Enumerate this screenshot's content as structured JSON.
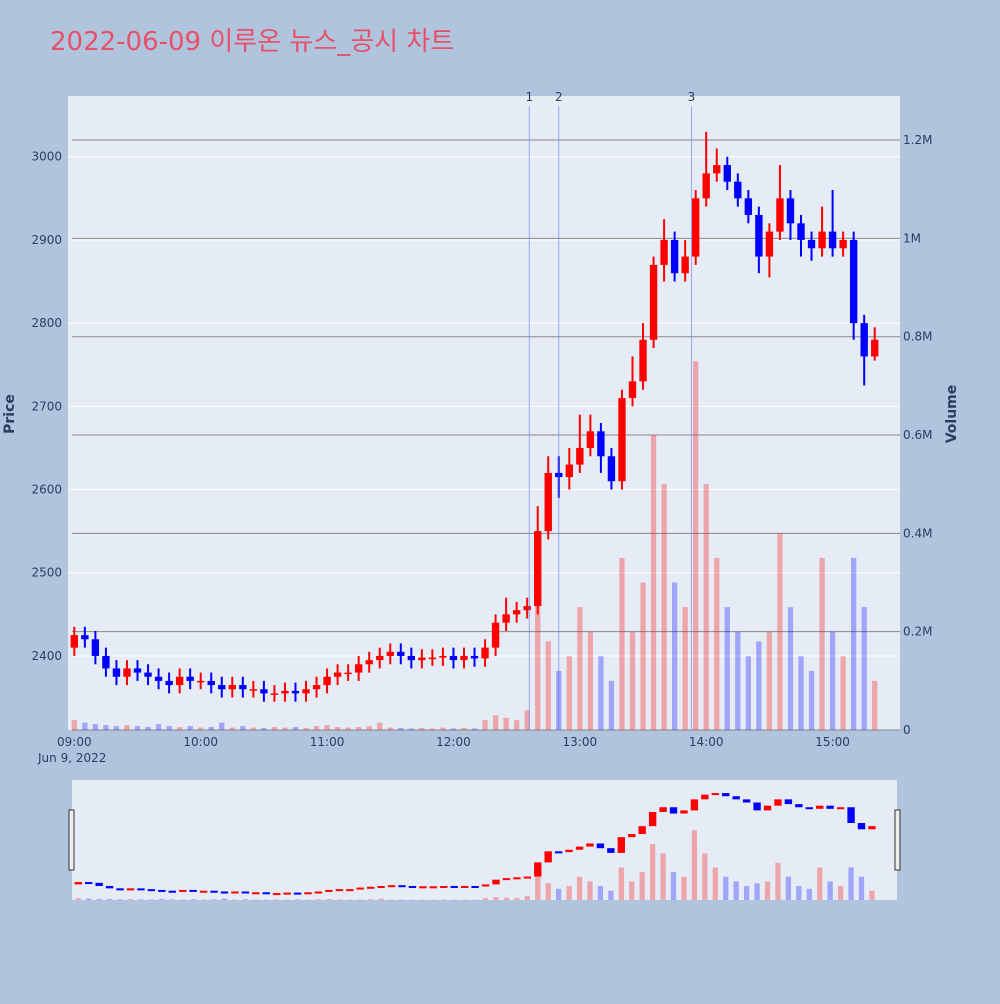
{
  "chart_data": {
    "type": "candlestick",
    "title": "2022-06-09 이루온 뉴스_공시 차트",
    "y_title": "Price",
    "y2_title": "Volume",
    "x_date_label": "Jun 9, 2022",
    "up_color": "#ff0000",
    "down_color": "#0000ff",
    "x": [
      "09:00",
      "09:05",
      "09:10",
      "09:15",
      "09:20",
      "09:25",
      "09:30",
      "09:35",
      "09:40",
      "09:45",
      "09:50",
      "09:55",
      "10:00",
      "10:05",
      "10:10",
      "10:15",
      "10:20",
      "10:25",
      "10:30",
      "10:35",
      "10:40",
      "10:45",
      "10:50",
      "10:55",
      "11:00",
      "11:05",
      "11:10",
      "11:15",
      "11:20",
      "11:25",
      "11:30",
      "11:35",
      "11:40",
      "11:45",
      "11:50",
      "11:55",
      "12:00",
      "12:05",
      "12:10",
      "12:15",
      "12:20",
      "12:25",
      "12:30",
      "12:35",
      "12:40",
      "12:45",
      "12:50",
      "12:55",
      "13:00",
      "13:05",
      "13:10",
      "13:15",
      "13:20",
      "13:25",
      "13:30",
      "13:35",
      "13:40",
      "13:45",
      "13:50",
      "13:55",
      "14:00",
      "14:05",
      "14:10",
      "14:15",
      "14:20",
      "14:25",
      "14:30",
      "14:35",
      "14:40",
      "14:45",
      "14:50",
      "14:55",
      "15:00",
      "15:05",
      "15:10",
      "15:15",
      "15:20"
    ],
    "open": [
      2410,
      2425,
      2420,
      2400,
      2385,
      2375,
      2385,
      2380,
      2375,
      2370,
      2365,
      2375,
      2370,
      2370,
      2365,
      2360,
      2365,
      2360,
      2360,
      2355,
      2355,
      2358,
      2355,
      2360,
      2365,
      2375,
      2380,
      2380,
      2390,
      2395,
      2400,
      2405,
      2400,
      2395,
      2398,
      2398,
      2400,
      2395,
      2400,
      2397,
      2410,
      2440,
      2450,
      2455,
      2460,
      2550,
      2620,
      2615,
      2630,
      2650,
      2670,
      2640,
      2610,
      2710,
      2730,
      2780,
      2870,
      2900,
      2860,
      2880,
      2950,
      2980,
      2990,
      2970,
      2950,
      2930,
      2880,
      2910,
      2950,
      2920,
      2900,
      2890,
      2910,
      2890,
      2900,
      2800,
      2760
    ],
    "high": [
      2435,
      2435,
      2430,
      2410,
      2395,
      2395,
      2395,
      2390,
      2385,
      2380,
      2385,
      2385,
      2380,
      2380,
      2375,
      2375,
      2375,
      2370,
      2370,
      2365,
      2368,
      2368,
      2370,
      2375,
      2385,
      2390,
      2390,
      2400,
      2405,
      2410,
      2415,
      2415,
      2410,
      2408,
      2408,
      2410,
      2410,
      2410,
      2410,
      2420,
      2450,
      2470,
      2465,
      2470,
      2580,
      2640,
      2640,
      2650,
      2690,
      2690,
      2680,
      2650,
      2720,
      2760,
      2800,
      2880,
      2925,
      2910,
      2900,
      2960,
      3030,
      3010,
      3000,
      2980,
      2960,
      2940,
      2920,
      2990,
      2960,
      2930,
      2910,
      2940,
      2960,
      2910,
      2910,
      2810,
      2795
    ],
    "low": [
      2400,
      2410,
      2390,
      2375,
      2365,
      2365,
      2370,
      2365,
      2360,
      2355,
      2355,
      2360,
      2360,
      2355,
      2350,
      2350,
      2350,
      2350,
      2345,
      2345,
      2345,
      2345,
      2345,
      2350,
      2355,
      2365,
      2370,
      2370,
      2380,
      2385,
      2390,
      2390,
      2385,
      2385,
      2388,
      2388,
      2385,
      2385,
      2387,
      2387,
      2400,
      2430,
      2440,
      2445,
      2450,
      2540,
      2590,
      2600,
      2620,
      2640,
      2620,
      2600,
      2600,
      2700,
      2720,
      2770,
      2850,
      2850,
      2850,
      2870,
      2940,
      2970,
      2960,
      2940,
      2920,
      2860,
      2855,
      2900,
      2900,
      2880,
      2875,
      2880,
      2880,
      2880,
      2780,
      2725,
      2755
    ],
    "close": [
      2425,
      2420,
      2400,
      2385,
      2375,
      2385,
      2380,
      2375,
      2370,
      2365,
      2375,
      2370,
      2370,
      2365,
      2360,
      2365,
      2360,
      2360,
      2355,
      2355,
      2358,
      2355,
      2360,
      2365,
      2375,
      2380,
      2380,
      2390,
      2395,
      2400,
      2405,
      2400,
      2395,
      2398,
      2398,
      2400,
      2395,
      2400,
      2397,
      2410,
      2440,
      2450,
      2455,
      2460,
      2550,
      2620,
      2615,
      2630,
      2650,
      2670,
      2640,
      2610,
      2710,
      2730,
      2780,
      2870,
      2900,
      2860,
      2880,
      2950,
      2980,
      2990,
      2970,
      2950,
      2930,
      2880,
      2910,
      2950,
      2920,
      2900,
      2890,
      2910,
      2890,
      2900,
      2800,
      2760,
      2780
    ],
    "volume": [
      20000,
      15000,
      12000,
      10000,
      8000,
      10000,
      8000,
      6000,
      12000,
      8000,
      6000,
      8000,
      5000,
      6000,
      15000,
      5000,
      8000,
      5000,
      4000,
      6000,
      5000,
      6000,
      4000,
      8000,
      10000,
      6000,
      5000,
      6000,
      8000,
      15000,
      5000,
      4000,
      3000,
      4000,
      3000,
      5000,
      3000,
      4000,
      3000,
      20000,
      30000,
      25000,
      20000,
      40000,
      300000,
      180000,
      120000,
      150000,
      250000,
      200000,
      150000,
      100000,
      350000,
      200000,
      300000,
      600000,
      500000,
      300000,
      250000,
      750000,
      500000,
      350000,
      250000,
      200000,
      150000,
      180000,
      200000,
      400000,
      250000,
      150000,
      120000,
      350000,
      200000,
      150000,
      350000,
      250000,
      100000
    ],
    "xlim": [
      "08:57",
      "15:32"
    ],
    "xticks": [
      "09:00",
      "10:00",
      "11:00",
      "12:00",
      "13:00",
      "14:00",
      "15:00"
    ],
    "ylim": [
      2311,
      3073
    ],
    "yticks": [
      2400,
      2500,
      2600,
      2700,
      2800,
      2900,
      3000
    ],
    "y2lim": [
      0,
      1289600
    ],
    "y2ticks": [
      0,
      {
        "value": 200000,
        "label": "0.2M"
      },
      {
        "value": 400000,
        "label": "0.4M"
      },
      {
        "value": 600000,
        "label": "0.6M"
      },
      {
        "value": 800000,
        "label": "0.8M"
      },
      {
        "value": 1000000,
        "label": "1M"
      },
      {
        "value": 1200000,
        "label": "1.2M"
      }
    ],
    "annotations": [
      {
        "x": "12:36",
        "text": "1"
      },
      {
        "x": "12:50",
        "text": "2"
      },
      {
        "x": "13:53",
        "text": "3"
      }
    ],
    "grid": true,
    "range_slider": true
  }
}
